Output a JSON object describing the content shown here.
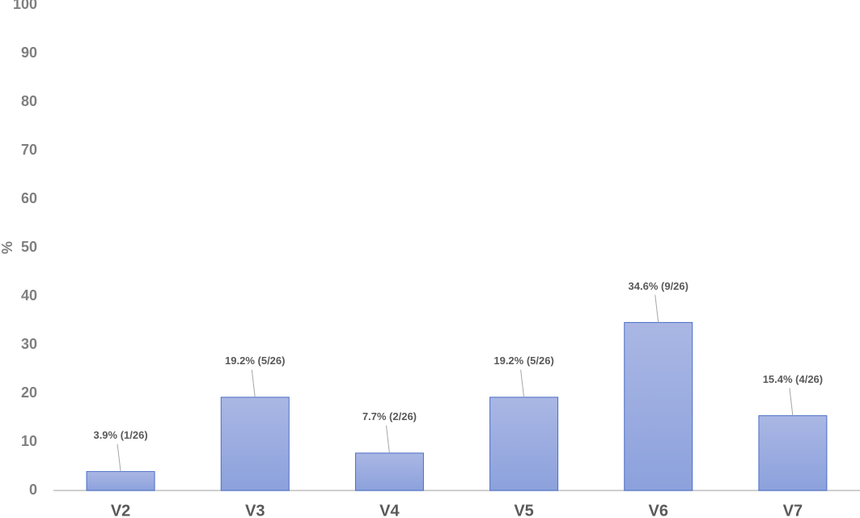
{
  "chart_data": {
    "type": "bar",
    "y_label": "%",
    "categories": [
      "V2",
      "V3",
      "V4",
      "V5",
      "V6",
      "V7"
    ],
    "values": [
      3.9,
      19.2,
      7.7,
      19.2,
      34.6,
      15.4
    ],
    "value_labels": [
      "3.9% (1/26)",
      "19.2% (5/26)",
      "7.7% (2/26)",
      "19.2% (5/26)",
      "34.6% (9/26)",
      "15.4% (4/26)"
    ],
    "color": "#9aace0",
    "ylim": [
      0,
      100
    ],
    "yticks": [
      0,
      10,
      20,
      30,
      40,
      50,
      60,
      70,
      80,
      90,
      100
    ],
    "grid": false
  }
}
